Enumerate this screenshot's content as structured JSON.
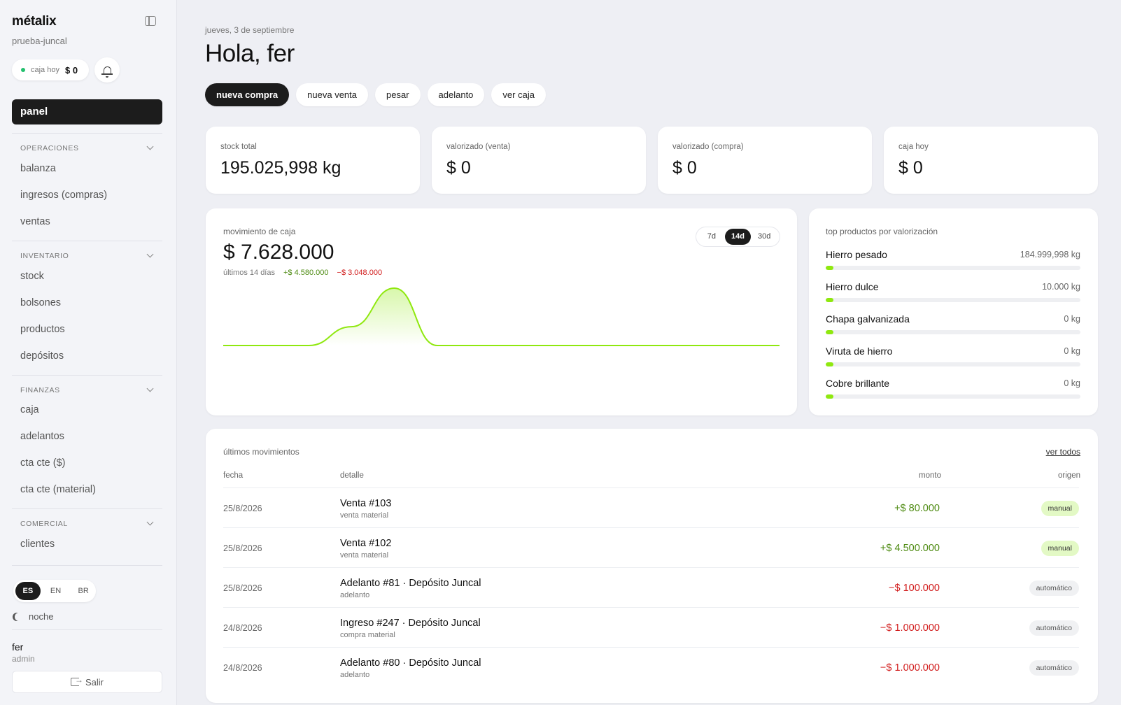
{
  "sidebar": {
    "brand": "métalix",
    "tenant": "prueba-juncal",
    "cash": {
      "label": "caja hoy",
      "value": "$ 0"
    },
    "nav_active": "panel",
    "sections": [
      {
        "title": "OPERACIONES",
        "items": [
          "balanza",
          "ingresos (compras)",
          "ventas"
        ]
      },
      {
        "title": "INVENTARIO",
        "items": [
          "stock",
          "bolsones",
          "productos",
          "depósitos"
        ]
      },
      {
        "title": "FINANZAS",
        "items": [
          "caja",
          "adelantos",
          "cta cte ($)",
          "cta cte (material)"
        ]
      },
      {
        "title": "COMERCIAL",
        "items": [
          "clientes"
        ]
      }
    ],
    "languages": [
      "ES",
      "EN",
      "BR"
    ],
    "active_language": "ES",
    "night_label": "noche",
    "user": {
      "name": "fer",
      "role": "admin"
    },
    "logout_label": "Salir"
  },
  "header": {
    "date": "jueves, 3 de septiembre",
    "greeting": "Hola, fer"
  },
  "actions": [
    "nueva compra",
    "nueva venta",
    "pesar",
    "adelanto",
    "ver caja"
  ],
  "stats": [
    {
      "label": "stock total",
      "value": "195.025,998 kg"
    },
    {
      "label": "valorizado (venta)",
      "value": "$ 0"
    },
    {
      "label": "valorizado (compra)",
      "value": "$ 0"
    },
    {
      "label": "caja hoy",
      "value": "$ 0"
    }
  ],
  "cash_movement": {
    "title": "movimiento de caja",
    "amount": "$ 7.628.000",
    "period": "últimos 14 días",
    "income": "+$ 4.580.000",
    "expense": "−$ 3.048.000",
    "ranges": [
      "7d",
      "14d",
      "30d"
    ],
    "active_range": "14d",
    "accent_color": "#8fe80f"
  },
  "chart_data": {
    "type": "area",
    "x": [
      1,
      2,
      3,
      4,
      5,
      6,
      7,
      8,
      9,
      10,
      11,
      12,
      13,
      14
    ],
    "values": [
      0,
      0,
      0,
      1500000,
      4580000,
      0,
      0,
      0,
      0,
      0,
      0,
      0,
      0,
      0
    ],
    "note_hidden": false
  },
  "top_products": {
    "title": "top productos por valorización",
    "items": [
      {
        "name": "Hierro pesado",
        "kg": "184.999,998 kg",
        "fraction": 0.03
      },
      {
        "name": "Hierro dulce",
        "kg": "10.000 kg",
        "fraction": 0.03
      },
      {
        "name": "Chapa galvanizada",
        "kg": "0 kg",
        "fraction": 0.03
      },
      {
        "name": "Viruta de hierro",
        "kg": "0 kg",
        "fraction": 0.03
      },
      {
        "name": "Cobre brillante",
        "kg": "0 kg",
        "fraction": 0.03
      }
    ]
  },
  "movements": {
    "title": "últimos movimientos",
    "see_all": "ver todos",
    "columns": [
      "fecha",
      "detalle",
      "monto",
      "origen"
    ],
    "rows": [
      {
        "date": "25/8/2026",
        "title": "Venta #103",
        "sub": "venta material",
        "amount": "+$ 80.000",
        "sign": "pos",
        "origin": "manual"
      },
      {
        "date": "25/8/2026",
        "title": "Venta #102",
        "sub": "venta material",
        "amount": "+$ 4.500.000",
        "sign": "pos",
        "origin": "manual"
      },
      {
        "date": "25/8/2026",
        "title": "Adelanto #81 · Depósito Juncal",
        "sub": "adelanto",
        "amount": "−$ 100.000",
        "sign": "neg",
        "origin": "automático"
      },
      {
        "date": "24/8/2026",
        "title": "Ingreso #247 · Depósito Juncal",
        "sub": "compra material",
        "amount": "−$ 1.000.000",
        "sign": "neg",
        "origin": "automático"
      },
      {
        "date": "24/8/2026",
        "title": "Adelanto #80 · Depósito Juncal",
        "sub": "adelanto",
        "amount": "−$ 1.000.000",
        "sign": "neg",
        "origin": "automático"
      }
    ]
  }
}
